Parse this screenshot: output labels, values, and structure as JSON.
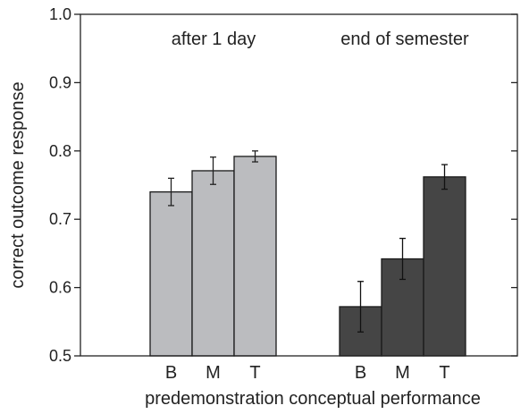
{
  "chart_data": {
    "type": "bar",
    "xlabel": "predemonstration conceptual performance",
    "ylabel": "correct outcome response",
    "ylim": [
      0.5,
      1.0
    ],
    "yticks": [
      0.5,
      0.6,
      0.7,
      0.8,
      0.9,
      1.0
    ],
    "ytick_labels": [
      "0.5",
      "0.6",
      "0.7",
      "0.8",
      "0.9",
      "1.0"
    ],
    "grid": false,
    "groups": [
      {
        "name": "after 1 day",
        "color": "#bbbcbf",
        "categories": [
          "B",
          "M",
          "T"
        ],
        "values": [
          0.74,
          0.771,
          0.792
        ],
        "errors": [
          0.02,
          0.02,
          0.008
        ]
      },
      {
        "name": "end of semester",
        "color": "#454545",
        "categories": [
          "B",
          "M",
          "T"
        ],
        "values": [
          0.572,
          0.642,
          0.762
        ],
        "errors": [
          0.037,
          0.03,
          0.018
        ]
      }
    ]
  }
}
